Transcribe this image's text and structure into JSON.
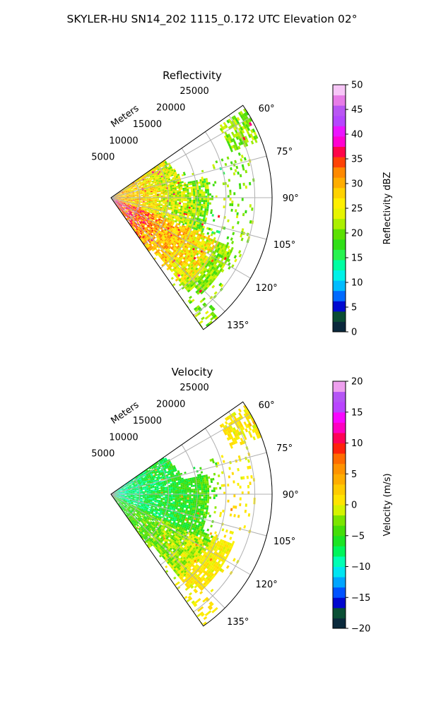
{
  "suptitle": "SKYLER-HU  SN14_202  1115_0.172 UTC Elevation 02°",
  "chart_data": [
    {
      "type": "heatmap",
      "projection": "polar-sector",
      "title": "Reflectivity",
      "radial_label": "Meters",
      "radial_ticks": [
        5000,
        10000,
        15000,
        20000,
        25000
      ],
      "radial_tick_labels": [
        "5000",
        "10000",
        "15000",
        "20000",
        "25000"
      ],
      "rlim": [
        0,
        28000
      ],
      "azimuth_range_deg": [
        55,
        145
      ],
      "azimuth_ticks_deg": [
        60,
        75,
        90,
        105,
        120,
        135
      ],
      "azimuth_tick_labels": [
        "60°",
        "75°",
        "90°",
        "105°",
        "120°",
        "135°"
      ],
      "grid": true,
      "colorbar": {
        "label": "Reflectivity dBZ",
        "range": [
          0,
          50
        ],
        "ticks": [
          0,
          5,
          10,
          15,
          20,
          25,
          30,
          35,
          40,
          45,
          50
        ],
        "tick_labels": [
          "0",
          "5",
          "10",
          "15",
          "20",
          "25",
          "30",
          "35",
          "40",
          "45",
          "50"
        ],
        "stops": [
          [
            0,
            "#0a1450"
          ],
          [
            2,
            "#0a3a2a"
          ],
          [
            4,
            "#0a5a3a"
          ],
          [
            5,
            "#0000c8"
          ],
          [
            6.5,
            "#0040ff"
          ],
          [
            8,
            "#0090ff"
          ],
          [
            10,
            "#00d0ff"
          ],
          [
            12,
            "#00ffe0"
          ],
          [
            14,
            "#00ff90"
          ],
          [
            16,
            "#30f040"
          ],
          [
            18,
            "#30dc10"
          ],
          [
            20,
            "#60e000"
          ],
          [
            22,
            "#b0f000"
          ],
          [
            24,
            "#e8f400"
          ],
          [
            26,
            "#fff000"
          ],
          [
            28,
            "#ffd400"
          ],
          [
            30,
            "#ffb000"
          ],
          [
            32,
            "#ff9000"
          ],
          [
            34,
            "#ff6000"
          ],
          [
            35,
            "#ff1010"
          ],
          [
            37,
            "#ff0060"
          ],
          [
            38,
            "#ff00c0"
          ],
          [
            40,
            "#ff00ff"
          ],
          [
            42,
            "#c040ff"
          ],
          [
            44,
            "#a050ff"
          ],
          [
            46,
            "#e060e0"
          ],
          [
            48,
            "#f0a0f0"
          ],
          [
            50,
            "#fff0ff"
          ]
        ]
      }
    },
    {
      "type": "heatmap",
      "projection": "polar-sector",
      "title": "Velocity",
      "radial_label": "Meters",
      "radial_ticks": [
        5000,
        10000,
        15000,
        20000,
        25000
      ],
      "radial_tick_labels": [
        "5000",
        "10000",
        "15000",
        "20000",
        "25000"
      ],
      "rlim": [
        0,
        28000
      ],
      "azimuth_range_deg": [
        55,
        145
      ],
      "azimuth_ticks_deg": [
        60,
        75,
        90,
        105,
        120,
        135
      ],
      "azimuth_tick_labels": [
        "60°",
        "75°",
        "90°",
        "105°",
        "120°",
        "135°"
      ],
      "grid": true,
      "colorbar": {
        "label": "Velocity (m/s)",
        "range": [
          -20,
          20
        ],
        "ticks": [
          -20,
          -15,
          -10,
          -5,
          0,
          5,
          10,
          15,
          20
        ],
        "tick_labels": [
          "−20",
          "−15",
          "−10",
          "−5",
          "0",
          "5",
          "10",
          "15",
          "20"
        ],
        "stops": [
          [
            -20,
            "#0a1450"
          ],
          [
            -18.5,
            "#0a3a2a"
          ],
          [
            -17,
            "#0a5a3a"
          ],
          [
            -16,
            "#0000c8"
          ],
          [
            -14.5,
            "#0040ff"
          ],
          [
            -13,
            "#0090ff"
          ],
          [
            -11.5,
            "#00d0ff"
          ],
          [
            -10,
            "#00ffe0"
          ],
          [
            -8.5,
            "#00ff90"
          ],
          [
            -7,
            "#00f040"
          ],
          [
            -5,
            "#30dc10"
          ],
          [
            -3,
            "#60e000"
          ],
          [
            -1.5,
            "#b0f000"
          ],
          [
            -0.5,
            "#e8f400"
          ],
          [
            0,
            "#fff000"
          ],
          [
            2,
            "#ffd400"
          ],
          [
            4,
            "#ffb000"
          ],
          [
            6,
            "#ff9000"
          ],
          [
            8,
            "#ff6000"
          ],
          [
            9.5,
            "#ff1010"
          ],
          [
            11,
            "#ff0060"
          ],
          [
            12.5,
            "#ff00c0"
          ],
          [
            14,
            "#ff00ff"
          ],
          [
            15.5,
            "#c040ff"
          ],
          [
            17,
            "#a050ff"
          ],
          [
            18.5,
            "#e060e0"
          ],
          [
            20,
            "#fff0ff"
          ]
        ]
      }
    }
  ]
}
